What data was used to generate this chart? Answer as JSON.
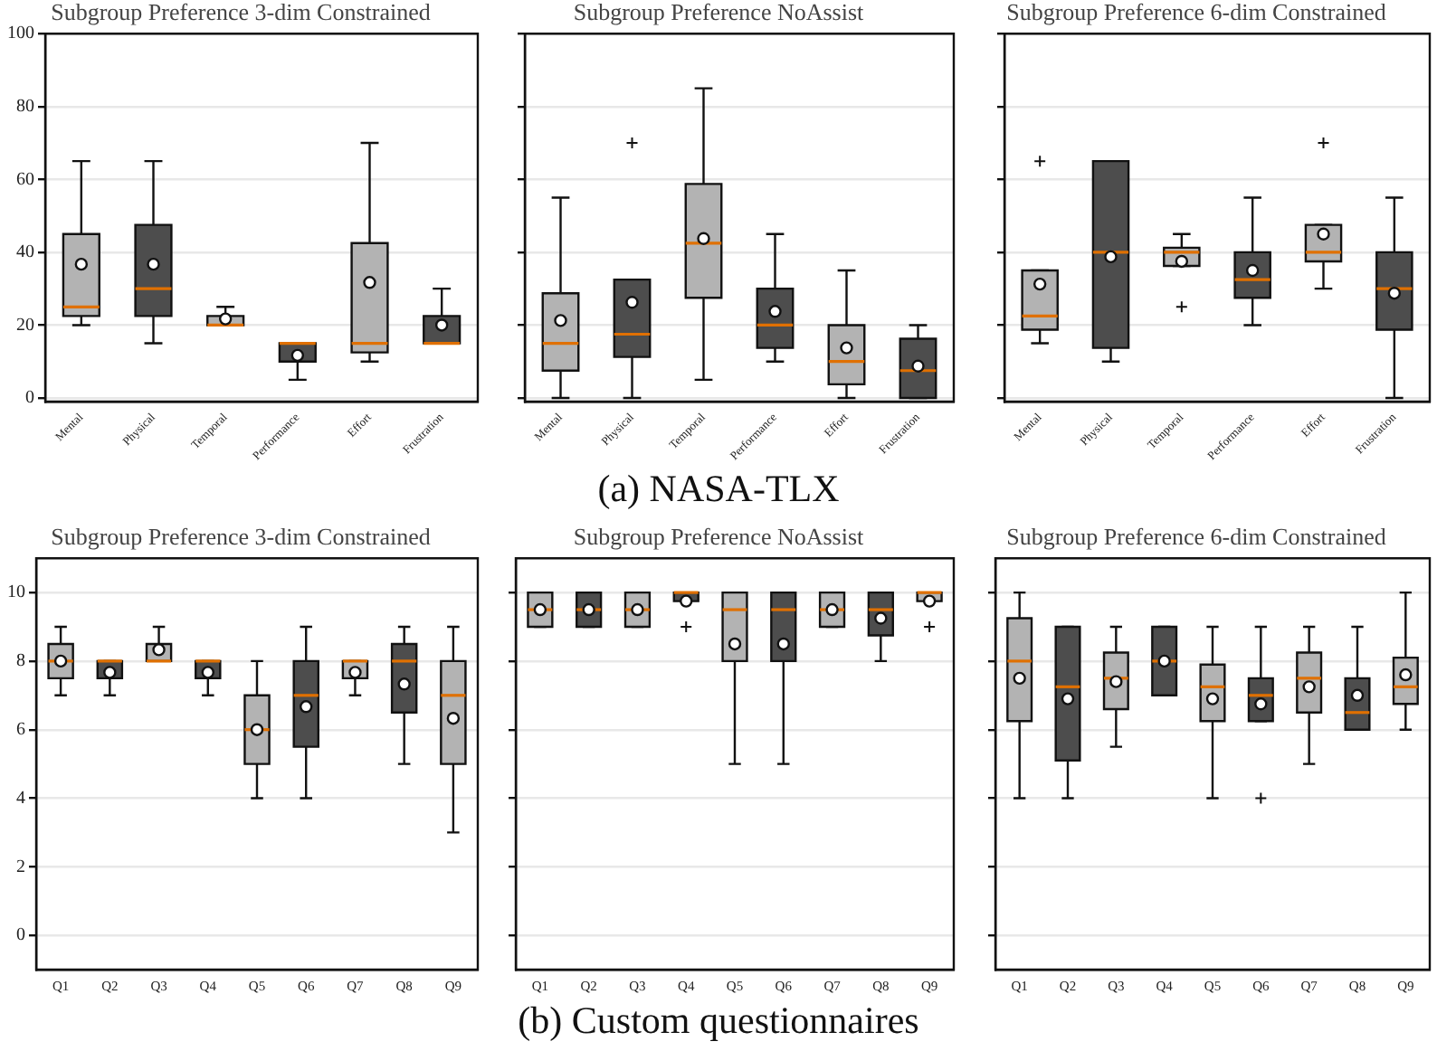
{
  "chart_data": [
    {
      "type": "box",
      "title": "Subgroup Preference 3-dim Constrained",
      "categories": [
        "Mental",
        "Physical",
        "Temporal",
        "Performance",
        "Effort",
        "Frustration"
      ],
      "colors": [
        "#b3b3b3",
        "#4d4d4d",
        "#b3b3b3",
        "#4d4d4d",
        "#b3b3b3",
        "#4d4d4d"
      ],
      "ylim": [
        -1,
        100
      ],
      "yticks": [
        0,
        20,
        40,
        60,
        80,
        100
      ],
      "grid": "y",
      "boxes": [
        {
          "low": 20,
          "q1": 22.5,
          "median": 25,
          "q3": 45,
          "high": 65,
          "mean": 36.7
        },
        {
          "low": 15,
          "q1": 22.5,
          "median": 30,
          "q3": 47.5,
          "high": 65,
          "mean": 36.7
        },
        {
          "low": 20,
          "q1": 20,
          "median": 20,
          "q3": 22.5,
          "high": 25,
          "mean": 21.7
        },
        {
          "low": 5,
          "q1": 10,
          "median": 15,
          "q3": 15,
          "high": 15,
          "mean": 11.7
        },
        {
          "low": 10,
          "q1": 12.5,
          "median": 15,
          "q3": 42.5,
          "high": 70,
          "mean": 31.7
        },
        {
          "low": 15,
          "q1": 15,
          "median": 15,
          "q3": 22.5,
          "high": 30,
          "mean": 20
        }
      ]
    },
    {
      "type": "box",
      "title": "Subgroup Preference NoAssist",
      "categories": [
        "Mental",
        "Physical",
        "Temporal",
        "Performance",
        "Effort",
        "Frustration"
      ],
      "colors": [
        "#b3b3b3",
        "#4d4d4d",
        "#b3b3b3",
        "#4d4d4d",
        "#b3b3b3",
        "#4d4d4d"
      ],
      "ylim": [
        -1,
        100
      ],
      "yticks": [
        0,
        20,
        40,
        60,
        80,
        100
      ],
      "grid": "y",
      "tick_labels": "x",
      "annotations": [
        "(a) NASA-TLX"
      ],
      "boxes": [
        {
          "low": 0,
          "q1": 7.5,
          "median": 15,
          "q3": 28.75,
          "high": 55,
          "mean": 21.25
        },
        {
          "low": 0,
          "q1": 11.25,
          "median": 17.5,
          "q3": 32.5,
          "high": 32.5,
          "mean": 26.25,
          "outliers": [
            70
          ]
        },
        {
          "low": 5,
          "q1": 27.5,
          "median": 42.5,
          "q3": 58.75,
          "high": 85,
          "mean": 43.75
        },
        {
          "low": 10,
          "q1": 13.75,
          "median": 20,
          "q3": 30,
          "high": 45,
          "mean": 23.75
        },
        {
          "low": 0,
          "q1": 3.75,
          "median": 10,
          "q3": 20,
          "high": 35,
          "mean": 13.75
        },
        {
          "low": 0,
          "q1": 0,
          "median": 7.5,
          "q3": 16.25,
          "high": 20,
          "mean": 8.75
        }
      ]
    },
    {
      "type": "box",
      "title": "Subgroup Preference 6-dim Constrained",
      "categories": [
        "Mental",
        "Physical",
        "Temporal",
        "Performance",
        "Effort",
        "Frustration"
      ],
      "colors": [
        "#b3b3b3",
        "#4d4d4d",
        "#b3b3b3",
        "#4d4d4d",
        "#b3b3b3",
        "#4d4d4d"
      ],
      "ylim": [
        -1,
        100
      ],
      "yticks": [
        0,
        20,
        40,
        60,
        80,
        100
      ],
      "grid": "y",
      "tick_labels": "x",
      "boxes": [
        {
          "low": 15,
          "q1": 18.75,
          "median": 22.5,
          "q3": 35,
          "high": 35,
          "mean": 31.25,
          "outliers": [
            65
          ]
        },
        {
          "low": 10,
          "q1": 13.75,
          "median": 40,
          "q3": 65,
          "high": 65,
          "mean": 38.75
        },
        {
          "low": 36.25,
          "q1": 36.25,
          "median": 40,
          "q3": 41.25,
          "high": 45,
          "mean": 37.5,
          "outliers": [
            25
          ]
        },
        {
          "low": 20,
          "q1": 27.5,
          "median": 32.5,
          "q3": 40,
          "high": 55,
          "mean": 35
        },
        {
          "low": 30,
          "q1": 37.5,
          "median": 40,
          "q3": 47.5,
          "high": 47.5,
          "mean": 45,
          "outliers": [
            70
          ]
        },
        {
          "low": 0,
          "q1": 18.75,
          "median": 30,
          "q3": 40,
          "high": 55,
          "mean": 28.75
        }
      ]
    },
    {
      "type": "box",
      "title": "Subgroup Preference 3-dim Constrained",
      "categories": [
        "Q1",
        "Q2",
        "Q3",
        "Q4",
        "Q5",
        "Q6",
        "Q7",
        "Q8",
        "Q9"
      ],
      "colors": [
        "#b3b3b3",
        "#4d4d4d",
        "#b3b3b3",
        "#4d4d4d",
        "#b3b3b3",
        "#4d4d4d",
        "#b3b3b3",
        "#4d4d4d",
        "#b3b3b3"
      ],
      "ylim": [
        -1,
        11
      ],
      "yticks": [
        0,
        2,
        4,
        6,
        8,
        10
      ],
      "grid": "y",
      "boxes": [
        {
          "low": 7,
          "q1": 7.5,
          "median": 8,
          "q3": 8.5,
          "high": 9,
          "mean": 8
        },
        {
          "low": 7,
          "q1": 7.5,
          "median": 8,
          "q3": 8,
          "high": 8,
          "mean": 7.67
        },
        {
          "low": 8,
          "q1": 8,
          "median": 8,
          "q3": 8.5,
          "high": 9,
          "mean": 8.33
        },
        {
          "low": 7,
          "q1": 7.5,
          "median": 8,
          "q3": 8,
          "high": 8,
          "mean": 7.67
        },
        {
          "low": 4,
          "q1": 5,
          "median": 6,
          "q3": 7,
          "high": 8,
          "mean": 6
        },
        {
          "low": 4,
          "q1": 5.5,
          "median": 7,
          "q3": 8,
          "high": 9,
          "mean": 6.67
        },
        {
          "low": 7,
          "q1": 7.5,
          "median": 8,
          "q3": 8,
          "high": 8,
          "mean": 7.67
        },
        {
          "low": 5,
          "q1": 6.5,
          "median": 8,
          "q3": 8.5,
          "high": 9,
          "mean": 7.33
        },
        {
          "low": 3,
          "q1": 5,
          "median": 7,
          "q3": 8,
          "high": 9,
          "mean": 6.33
        }
      ]
    },
    {
      "type": "box",
      "title": "Subgroup Preference NoAssist",
      "categories": [
        "Q1",
        "Q2",
        "Q3",
        "Q4",
        "Q5",
        "Q6",
        "Q7",
        "Q8",
        "Q9"
      ],
      "colors": [
        "#b3b3b3",
        "#4d4d4d",
        "#b3b3b3",
        "#4d4d4d",
        "#b3b3b3",
        "#4d4d4d",
        "#b3b3b3",
        "#4d4d4d",
        "#b3b3b3"
      ],
      "ylim": [
        -1,
        11
      ],
      "yticks": [
        0,
        2,
        4,
        6,
        8,
        10
      ],
      "grid": "y",
      "tick_labels": "x",
      "annotations": [
        "(b) Custom questionnaires"
      ],
      "boxes": [
        {
          "low": 9,
          "q1": 9,
          "median": 9.5,
          "q3": 10,
          "high": 10,
          "mean": 9.5
        },
        {
          "low": 9,
          "q1": 9,
          "median": 9.5,
          "q3": 10,
          "high": 10,
          "mean": 9.5
        },
        {
          "low": 9,
          "q1": 9,
          "median": 9.5,
          "q3": 10,
          "high": 10,
          "mean": 9.5
        },
        {
          "low": 9.75,
          "q1": 9.75,
          "median": 10,
          "q3": 10,
          "high": 10,
          "mean": 9.75,
          "outliers": [
            9
          ]
        },
        {
          "low": 5,
          "q1": 8,
          "median": 9.5,
          "q3": 10,
          "high": 10,
          "mean": 8.5
        },
        {
          "low": 5,
          "q1": 8,
          "median": 9.5,
          "q3": 10,
          "high": 10,
          "mean": 8.5
        },
        {
          "low": 9,
          "q1": 9,
          "median": 9.5,
          "q3": 10,
          "high": 10,
          "mean": 9.5
        },
        {
          "low": 8,
          "q1": 8.75,
          "median": 9.5,
          "q3": 10,
          "high": 10,
          "mean": 9.25
        },
        {
          "low": 9.75,
          "q1": 9.75,
          "median": 10,
          "q3": 10,
          "high": 10,
          "mean": 9.75,
          "outliers": [
            9
          ]
        }
      ]
    },
    {
      "type": "box",
      "title": "Subgroup Preference 6-dim Constrained",
      "categories": [
        "Q1",
        "Q2",
        "Q3",
        "Q4",
        "Q5",
        "Q6",
        "Q7",
        "Q8",
        "Q9"
      ],
      "colors": [
        "#b3b3b3",
        "#4d4d4d",
        "#b3b3b3",
        "#4d4d4d",
        "#b3b3b3",
        "#4d4d4d",
        "#b3b3b3",
        "#4d4d4d",
        "#b3b3b3"
      ],
      "ylim": [
        -1,
        11
      ],
      "yticks": [
        0,
        2,
        4,
        6,
        8,
        10
      ],
      "grid": "y",
      "tick_labels": "x",
      "boxes": [
        {
          "low": 4,
          "q1": 6.25,
          "median": 8,
          "q3": 9.25,
          "high": 10,
          "mean": 7.5
        },
        {
          "low": 4,
          "q1": 5.1,
          "median": 7.25,
          "q3": 9,
          "high": 9,
          "mean": 6.9
        },
        {
          "low": 5.5,
          "q1": 6.6,
          "median": 7.5,
          "q3": 8.25,
          "high": 9,
          "mean": 7.4
        },
        {
          "low": 7,
          "q1": 7,
          "median": 8,
          "q3": 9,
          "high": 9,
          "mean": 8
        },
        {
          "low": 4,
          "q1": 6.25,
          "median": 7.25,
          "q3": 7.9,
          "high": 9,
          "mean": 6.9
        },
        {
          "low": 6.25,
          "q1": 6.25,
          "median": 7,
          "q3": 7.5,
          "high": 9,
          "mean": 6.75,
          "outliers": [
            4
          ]
        },
        {
          "low": 5,
          "q1": 6.5,
          "median": 7.5,
          "q3": 8.25,
          "high": 9,
          "mean": 7.25
        },
        {
          "low": 6,
          "q1": 6,
          "median": 6.5,
          "q3": 7.5,
          "high": 9,
          "mean": 7
        },
        {
          "low": 6,
          "q1": 6.75,
          "median": 7.25,
          "q3": 8.1,
          "high": 10,
          "mean": 7.6
        }
      ]
    }
  ]
}
